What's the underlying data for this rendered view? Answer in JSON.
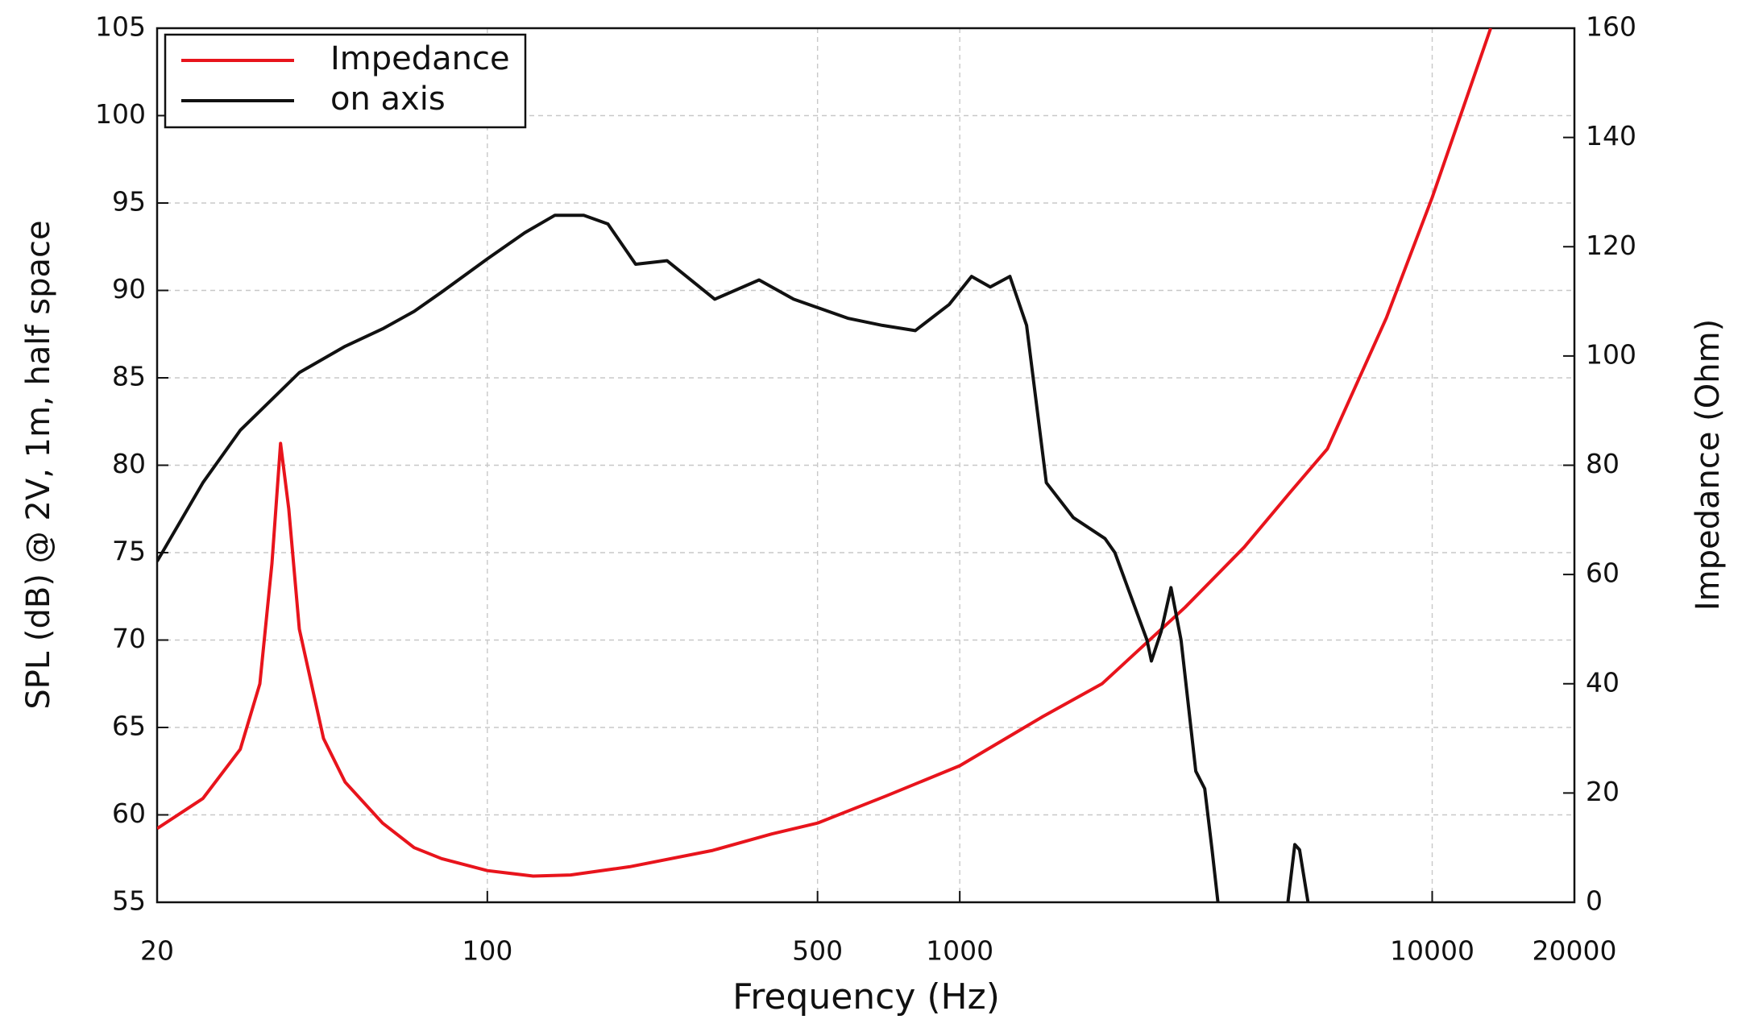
{
  "chart_data": {
    "type": "line",
    "xlabel": "Frequency (Hz)",
    "ylabel": "SPL (dB) @ 2V, 1m, half space",
    "y2label": "Impedance (Ohm)",
    "xscale": "log",
    "xlim": [
      20,
      20000
    ],
    "xticks": [
      20,
      100,
      500,
      1000,
      10000,
      20000
    ],
    "ylim": [
      55,
      105
    ],
    "yticks": [
      55,
      60,
      65,
      70,
      75,
      80,
      85,
      90,
      95,
      100,
      105
    ],
    "y2lim": [
      0,
      160
    ],
    "y2ticks": [
      0,
      20,
      40,
      60,
      80,
      100,
      120,
      140,
      160
    ],
    "grid": true,
    "legend": "upper left",
    "series": [
      {
        "name": "Impedance",
        "color": "#e8141c",
        "axis": "y2",
        "x": [
          20,
          25,
          30,
          33,
          35,
          36.5,
          38,
          40,
          45,
          50,
          60,
          70,
          80,
          100,
          125,
          150,
          200,
          300,
          400,
          500,
          700,
          1000,
          1500,
          2000,
          3000,
          4000,
          5000,
          6000,
          8000,
          10000,
          13300
        ],
        "values": [
          13.5,
          19,
          28,
          40,
          62,
          84,
          72,
          50,
          30,
          22,
          14.5,
          10,
          8,
          5.8,
          4.8,
          5,
          6.5,
          9.5,
          12.5,
          14.5,
          19.5,
          25,
          34,
          40,
          54,
          65,
          75,
          83,
          107,
          129,
          160
        ]
      },
      {
        "name": "on axis",
        "color": "#111111",
        "x": [
          20,
          25,
          30,
          40,
          50,
          60,
          70,
          80,
          100,
          120,
          139,
          160,
          180,
          206,
          240,
          303,
          376,
          445,
          581,
          686,
          805,
          950,
          1059,
          1160,
          1277,
          1385,
          1525,
          1740,
          2030,
          2130,
          2490,
          2545,
          2670,
          2800,
          2940,
          3160,
          3300,
          3420,
          3520,
          4200,
          4950,
          5120,
          5240,
          5460
        ],
        "values": [
          74.5,
          79,
          82,
          85.3,
          86.8,
          87.8,
          88.8,
          89.9,
          91.8,
          93.3,
          94.3,
          94.3,
          93.8,
          91.5,
          91.7,
          89.5,
          90.6,
          89.5,
          88.4,
          88,
          87.7,
          89.2,
          90.8,
          90.2,
          90.8,
          88,
          79,
          77,
          75.8,
          75,
          70,
          68.8,
          70.5,
          73,
          70,
          62.5,
          61.5,
          58,
          55,
          null,
          55,
          58.3,
          58,
          55
        ]
      }
    ]
  }
}
